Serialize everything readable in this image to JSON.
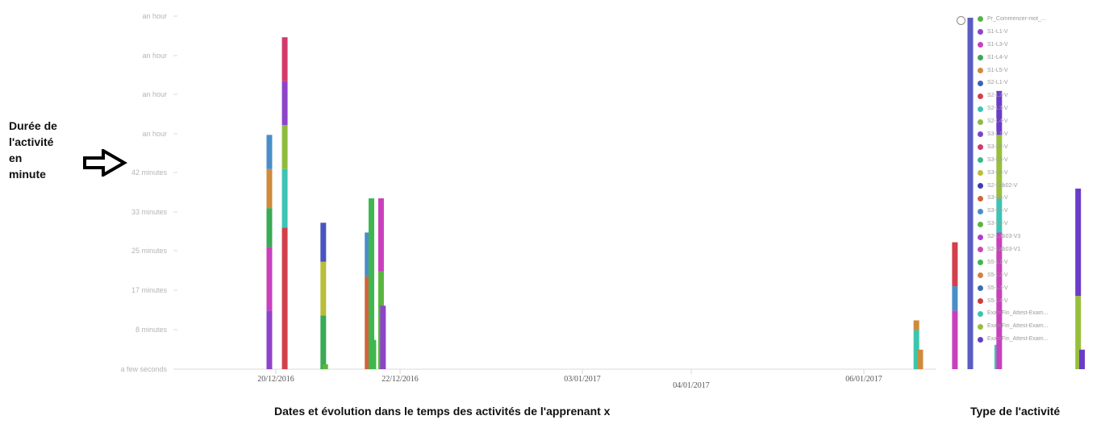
{
  "labels": {
    "ylabel_lines": [
      "Durée de",
      "l'activité",
      "en",
      "minute"
    ],
    "xlabel": "Dates et évolution dans le temps des activités de l'apprenant x",
    "legend_title": "Type de l'activité"
  },
  "chart_data": {
    "type": "bar",
    "title": "",
    "xlabel": "Dates et évolution dans le temps des activités de l'apprenant x",
    "ylabel": "Durée de l'activité en minute",
    "stacked": true,
    "grid": false,
    "legend_position": "right",
    "x_tick_labels": [
      "20/12/2016",
      "22/12/2016",
      "03/01/2017",
      "04/01/2017",
      "06/01/2017"
    ],
    "y_tick_labels": [
      "a few seconds",
      "8 minutes",
      "17 minutes",
      "25 minutes",
      "33 minutes",
      "42 minutes",
      "an hour",
      "an hour",
      "an hour",
      "an hour"
    ],
    "y_unit": "minutes",
    "ylim": [
      0,
      75
    ],
    "legend": [
      {
        "name": "Pr_Commencer-mot_...",
        "color": "#58b34a"
      },
      {
        "name": "S1-L1-V",
        "color": "#8e44c9"
      },
      {
        "name": "S1-L3-V",
        "color": "#c940bd"
      },
      {
        "name": "S1-L4-V",
        "color": "#3aaa55"
      },
      {
        "name": "S1-L5-V",
        "color": "#d08a3c"
      },
      {
        "name": "S2-L1-V",
        "color": "#3f62b5"
      },
      {
        "name": "S2-L2-V",
        "color": "#d2404c"
      },
      {
        "name": "S2-L3-V",
        "color": "#3cc4b4"
      },
      {
        "name": "S2-L4-V",
        "color": "#8ebb3e"
      },
      {
        "name": "S3-L1-V",
        "color": "#7a45c7"
      },
      {
        "name": "S3-L2-V",
        "color": "#d23a6a"
      },
      {
        "name": "S3-L3-V",
        "color": "#3cb888"
      },
      {
        "name": "S3-L4-V",
        "color": "#b9be3a"
      },
      {
        "name": "S2-Lab02-V",
        "color": "#3a3db6"
      },
      {
        "name": "S3-L6-V",
        "color": "#d2643c"
      },
      {
        "name": "S3-L5-V",
        "color": "#4a8ec9"
      },
      {
        "name": "S3-L7-V",
        "color": "#5ab53e"
      },
      {
        "name": "S2-Lab03-V3",
        "color": "#b13cd0"
      },
      {
        "name": "S2-Lab03-V1",
        "color": "#c84bb8"
      },
      {
        "name": "S5-L1-V",
        "color": "#3eb84e"
      },
      {
        "name": "S5-L2-V",
        "color": "#d2823c"
      },
      {
        "name": "S5-L3-V",
        "color": "#3c6cb2"
      },
      {
        "name": "S5-L4-V",
        "color": "#d23c3c"
      },
      {
        "name": "ExamFin_Attest-Exam...",
        "color": "#3cc4ad"
      },
      {
        "name": "ExamFin_Attest-Exam...",
        "color": "#98bf3c"
      },
      {
        "name": "ExamFin_Attest-Exam...",
        "color": "#6a3cc9"
      }
    ],
    "bars": [
      {
        "date": "2016-12-19T20:00",
        "segments": [
          {
            "color": "#8e44c9",
            "value": 12
          },
          {
            "color": "#c940bd",
            "value": 13
          },
          {
            "color": "#3aaa55",
            "value": 8
          },
          {
            "color": "#d08a3c",
            "value": 8
          },
          {
            "color": "#4a8ec9",
            "value": 7
          }
        ]
      },
      {
        "date": "2016-12-20T04:00",
        "segments": [
          {
            "color": "#d2404c",
            "value": 29
          },
          {
            "color": "#3cc4b4",
            "value": 12
          },
          {
            "color": "#8ebb3e",
            "value": 9
          },
          {
            "color": "#8e44c9",
            "value": 9
          },
          {
            "color": "#d23a6a",
            "value": 9
          }
        ]
      },
      {
        "date": "2016-12-21T00:00",
        "segments": [
          {
            "color": "#3aaa55",
            "value": 11
          },
          {
            "color": "#b9be3a",
            "value": 11
          },
          {
            "color": "#4a54c0",
            "value": 8
          }
        ]
      },
      {
        "date": "2016-12-21T01:00",
        "segments": [
          {
            "color": "#5ab53e",
            "value": 1
          }
        ]
      },
      {
        "date": "2016-12-21T23:00",
        "segments": [
          {
            "color": "#d2643c",
            "value": 19
          },
          {
            "color": "#4a8ec9",
            "value": 9
          }
        ]
      },
      {
        "date": "2016-12-22T01:00",
        "segments": [
          {
            "color": "#3eb84e",
            "value": 35
          }
        ]
      },
      {
        "date": "2016-12-22T02:00",
        "segments": [
          {
            "color": "#3eb84e",
            "value": 6
          }
        ]
      },
      {
        "date": "2016-12-22T06:00",
        "segments": [
          {
            "color": "#5ab53e",
            "value": 20
          },
          {
            "color": "#c940bd",
            "value": 15
          }
        ]
      },
      {
        "date": "2016-12-22T07:00",
        "segments": [
          {
            "color": "#8e44c9",
            "value": 13
          }
        ]
      },
      {
        "date": "2017-01-02T20:00",
        "segments": [
          {
            "color": "#3cc4ad",
            "value": 8
          },
          {
            "color": "#d08a3c",
            "value": 2
          }
        ]
      },
      {
        "date": "2017-01-02T22:00",
        "segments": [
          {
            "color": "#d08a3c",
            "value": 4
          }
        ]
      },
      {
        "date": "2017-01-03T16:00",
        "segments": [
          {
            "color": "#c940bd",
            "value": 12
          },
          {
            "color": "#4a8ec9",
            "value": 5
          },
          {
            "color": "#d2404c",
            "value": 9
          }
        ]
      },
      {
        "date": "2017-01-04T00:00",
        "segments": [
          {
            "color": "#5a5cc4",
            "value": 72
          }
        ]
      },
      {
        "date": "2017-01-04T14:00",
        "segments": [
          {
            "color": "#3cc4b4",
            "value": 5
          }
        ]
      },
      {
        "date": "2017-01-04T15:00",
        "segments": [
          {
            "color": "#c940bd",
            "value": 28
          },
          {
            "color": "#3cc4b4",
            "value": 7
          },
          {
            "color": "#98bf3c",
            "value": 13
          },
          {
            "color": "#6a3cc9",
            "value": 9
          }
        ]
      },
      {
        "date": "2017-01-06T08:00",
        "segments": [
          {
            "color": "#98bf3c",
            "value": 15
          },
          {
            "color": "#6a3cc9",
            "value": 22
          }
        ]
      },
      {
        "date": "2017-01-06T10:00",
        "segments": [
          {
            "color": "#6a3cc9",
            "value": 4
          }
        ]
      }
    ]
  }
}
